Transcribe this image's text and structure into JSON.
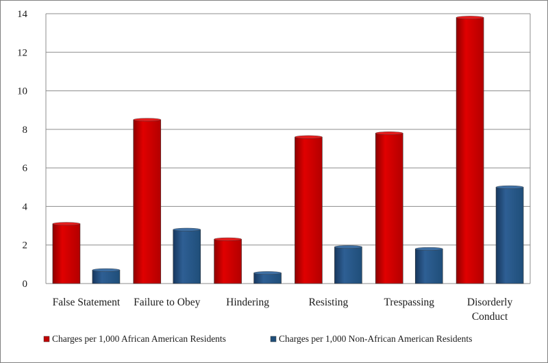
{
  "chart_data": {
    "type": "bar",
    "categories": [
      [
        "False Statement"
      ],
      [
        "Failure to Obey"
      ],
      [
        "Hindering"
      ],
      [
        "Resisting"
      ],
      [
        "Trespassing"
      ],
      [
        "Disorderly",
        "Conduct"
      ]
    ],
    "series": [
      {
        "name": "Charges per 1,000 African American Residents",
        "color": "#c00000",
        "values": [
          3.1,
          8.5,
          2.3,
          7.6,
          7.8,
          13.8
        ]
      },
      {
        "name": "Charges per 1,000 Non-African American Residents",
        "color": "#1f4e79",
        "values": [
          0.7,
          2.8,
          0.55,
          1.9,
          1.8,
          5.0
        ]
      }
    ],
    "ylim": [
      0,
      14
    ],
    "yticks": [
      0,
      2,
      4,
      6,
      8,
      10,
      12,
      14
    ],
    "grid": true,
    "legend": "bottom",
    "title": "",
    "xlabel": "",
    "ylabel": ""
  }
}
